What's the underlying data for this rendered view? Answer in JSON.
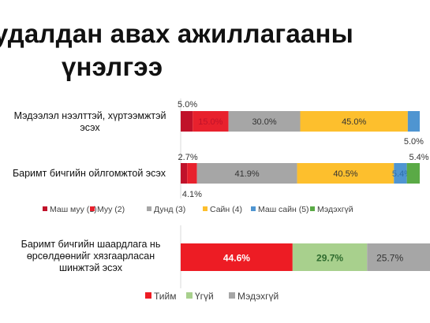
{
  "title_lines": [
    "удалдан авах ажиллагааны",
    "үнэлгээ"
  ],
  "colors": {
    "masht_muu": "#c0122a",
    "muu": "#e8212d",
    "dund": "#a6a6a6",
    "sain": "#fdbf2d",
    "masht_sain": "#4f95d1",
    "medekhgui": "#5aaa46",
    "tiim": "#ed1c24",
    "ugui": "#a8d08d",
    "medekhgui2": "#a6a6a6"
  },
  "chart_data": [
    {
      "type": "bar",
      "orientation": "horizontal",
      "stacked": true,
      "categories": [
        "Мэдээлэл нээлттэй, хүртээмжтэй эсэх",
        "Баримт бичгийн ойлгомжтой эсэх"
      ],
      "series": [
        {
          "name": "Маш муу (1)",
          "values": [
            5.0,
            2.7
          ],
          "labels": [
            "5.0%",
            "2.7%"
          ]
        },
        {
          "name": "Муу (2)",
          "values": [
            15.0,
            4.1
          ],
          "labels": [
            "15.0%",
            "4.1%"
          ]
        },
        {
          "name": "Дунд (3)",
          "values": [
            30.0,
            41.9
          ],
          "labels": [
            "30.0%",
            "41.9%"
          ]
        },
        {
          "name": "Сайн (4)",
          "values": [
            45.0,
            40.5
          ],
          "labels": [
            "45.0%",
            "40.5%"
          ]
        },
        {
          "name": "Маш сайн (5)",
          "values": [
            5.0,
            5.4
          ],
          "labels": [
            "5.0%",
            "5.4%"
          ]
        },
        {
          "name": "Мэдэхгүй",
          "values": [
            0,
            5.4
          ],
          "labels": [
            "",
            "5.4%"
          ]
        }
      ],
      "legend_position": "bottom"
    },
    {
      "type": "bar",
      "orientation": "horizontal",
      "stacked": true,
      "categories": [
        "Баримт бичгийн шаардлага нь өрсөлдөөнийг хязгаарласан шинжтэй эсэх"
      ],
      "series": [
        {
          "name": "Тийм",
          "values": [
            44.6
          ],
          "labels": [
            "44.6%"
          ]
        },
        {
          "name": "Үгүй",
          "values": [
            29.7
          ],
          "labels": [
            "29.7%"
          ]
        },
        {
          "name": "Мэдэхгүй",
          "values": [
            25.7
          ],
          "labels": [
            "25.7%"
          ]
        }
      ],
      "legend_position": "bottom"
    }
  ],
  "category_lines": [
    [
      "Мэдээлэл нээлттэй, хүртээмжтэй",
      "эсэх"
    ],
    [
      "Баримт бичгийн ойлгомжтой эсэх"
    ],
    [
      "Баримт бичгийн шаардлага нь",
      "өрсөлдөөнийг хязгаарласан",
      "шинжтэй эсэх"
    ]
  ]
}
